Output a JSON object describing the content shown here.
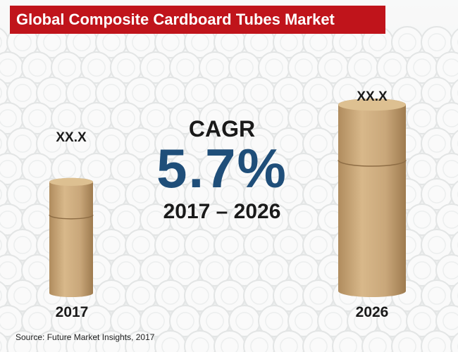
{
  "title": "Global Composite Cardboard Tubes Market",
  "source": "Source: Future Market Insights, 2017",
  "cagr": {
    "label": "CAGR",
    "value": "5.7%",
    "period": "2017 – 2026"
  },
  "chart_data": {
    "type": "bar",
    "categories": [
      "2017",
      "2026"
    ],
    "value_labels": [
      "XX.X",
      "XX.X"
    ],
    "relative_size": [
      0.6,
      1.0
    ],
    "cagr_percent": 5.7
  },
  "colors": {
    "banner": "#c0141b",
    "cagr_value": "#1f4e79",
    "tube_fill": "#c9a77a"
  }
}
